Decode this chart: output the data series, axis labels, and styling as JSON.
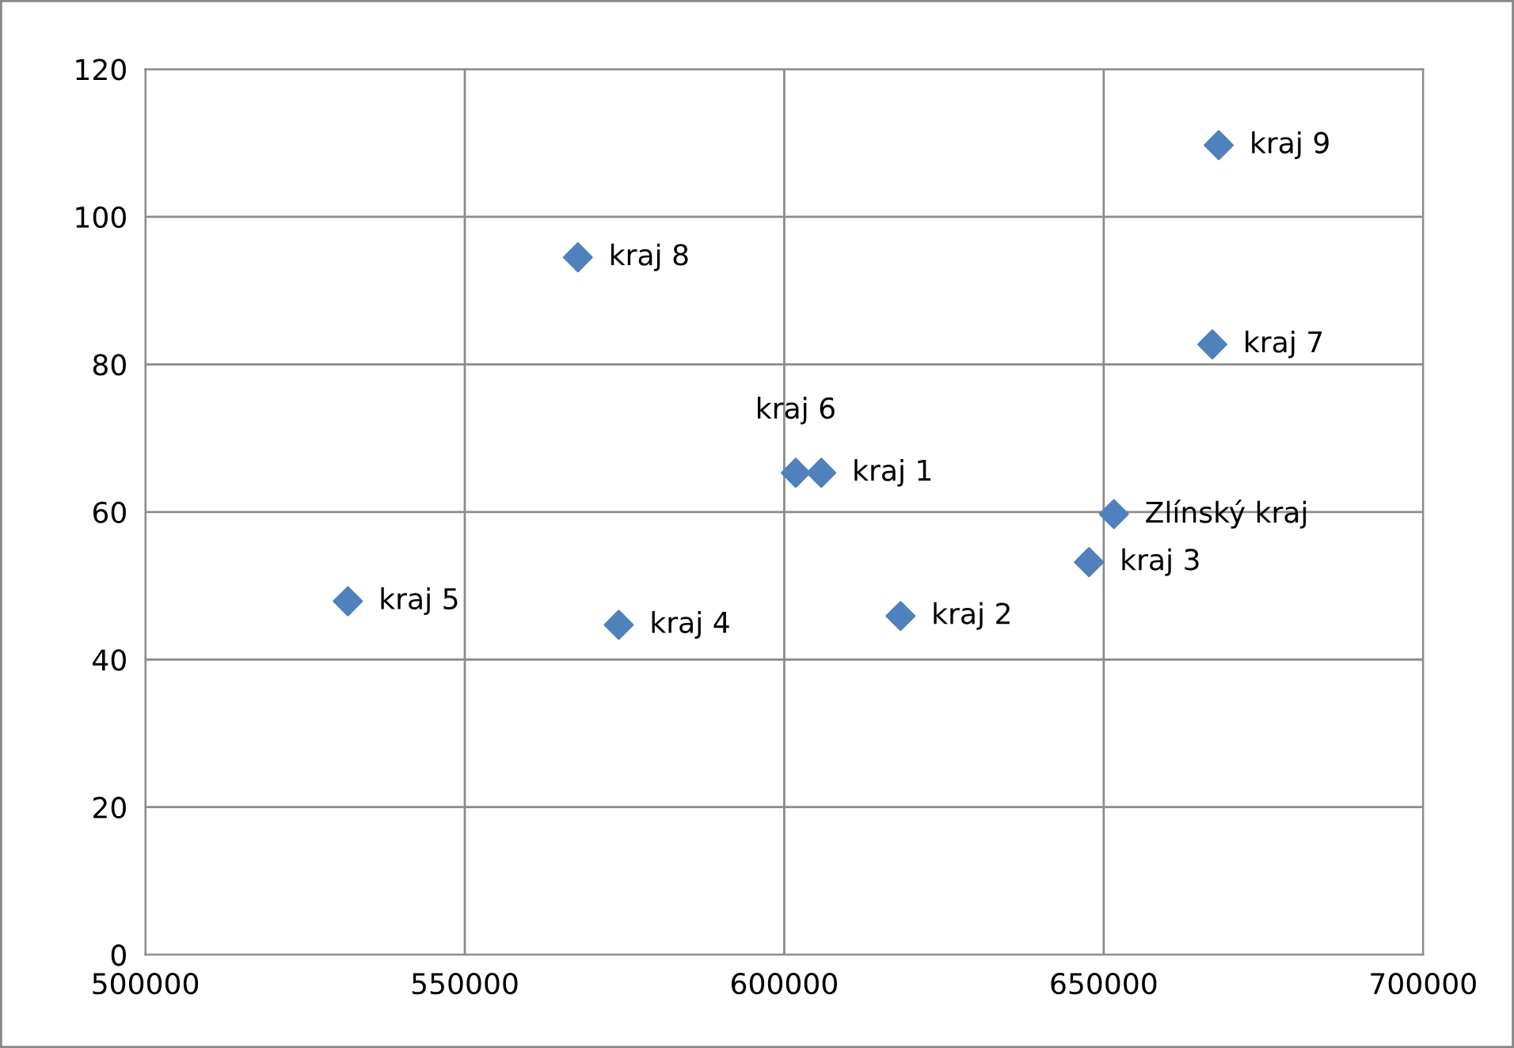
{
  "chart_data": {
    "type": "scatter",
    "x": [
      605800,
      618200,
      647700,
      574100,
      531700,
      601800,
      667000,
      567700,
      668000,
      651600
    ],
    "values": [
      65.3,
      45.9,
      53.2,
      44.7,
      47.9,
      65.3,
      82.7,
      94.5,
      109.7,
      59.7
    ],
    "color": "#4f81bd",
    "marker": "diamond",
    "grid": true,
    "xlim": [
      500000,
      700000
    ],
    "xticks": [
      500000,
      550000,
      600000,
      650000,
      700000
    ],
    "ylim": [
      0,
      120
    ],
    "yticks": [
      0,
      20,
      40,
      60,
      80,
      100,
      120
    ],
    "annotations": [
      {
        "text": "kraj 1",
        "x": 605800,
        "y": 65.3
      },
      {
        "text": "kraj 2",
        "x": 618200,
        "y": 45.9
      },
      {
        "text": "kraj 3",
        "x": 647700,
        "y": 53.2
      },
      {
        "text": "kraj 4",
        "x": 574100,
        "y": 44.7
      },
      {
        "text": "kraj 5",
        "x": 531700,
        "y": 47.9
      },
      {
        "text": "kraj 6",
        "x": 601800,
        "y": 65.3
      },
      {
        "text": "kraj 7",
        "x": 667000,
        "y": 82.7
      },
      {
        "text": "kraj 8",
        "x": 567700,
        "y": 94.5
      },
      {
        "text": "kraj 9",
        "x": 668000,
        "y": 109.7
      },
      {
        "text": "Zlínský kraj",
        "x": 651600,
        "y": 59.7
      }
    ]
  }
}
